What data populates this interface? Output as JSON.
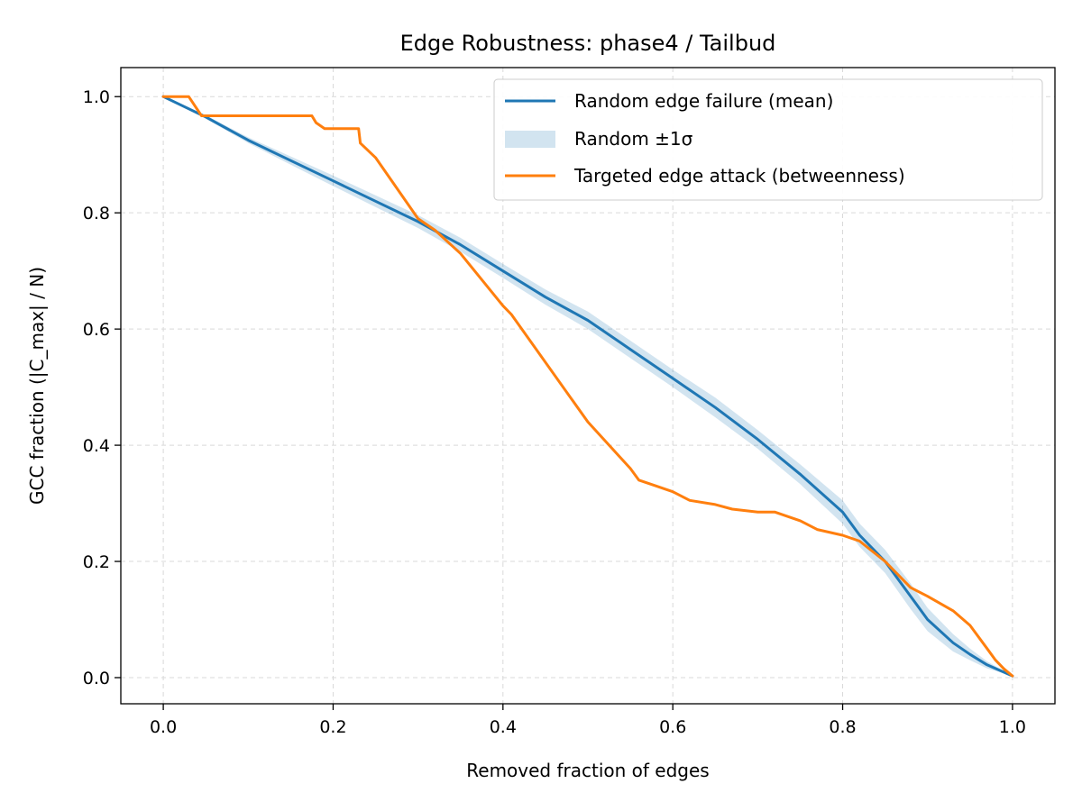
{
  "chart_data": {
    "type": "line",
    "title": "Edge Robustness: phase4 / Tailbud",
    "xlabel": "Removed fraction of edges",
    "ylabel": "GCC fraction (|C_max| / N)",
    "xlim": [
      -0.05,
      1.05
    ],
    "ylim": [
      -0.045,
      1.05
    ],
    "xticks": [
      0.0,
      0.2,
      0.4,
      0.6,
      0.8,
      1.0
    ],
    "yticks": [
      0.0,
      0.2,
      0.4,
      0.6,
      0.8,
      1.0
    ],
    "xtick_labels": [
      "0.0",
      "0.2",
      "0.4",
      "0.6",
      "0.8",
      "1.0"
    ],
    "ytick_labels": [
      "0.0",
      "0.2",
      "0.4",
      "0.6",
      "0.8",
      "1.0"
    ],
    "grid": true,
    "legend_position": "top-right",
    "colors": {
      "random": "#1f77b4",
      "band": "#1f77b4",
      "targeted": "#ff7f0e"
    },
    "series": [
      {
        "name": "Random edge failure (mean)",
        "kind": "line",
        "x": [
          0.0,
          0.05,
          0.1,
          0.15,
          0.2,
          0.25,
          0.3,
          0.35,
          0.4,
          0.45,
          0.5,
          0.55,
          0.6,
          0.65,
          0.7,
          0.75,
          0.8,
          0.82,
          0.85,
          0.88,
          0.9,
          0.93,
          0.95,
          0.97,
          1.0
        ],
        "y": [
          1.0,
          0.965,
          0.925,
          0.89,
          0.855,
          0.82,
          0.785,
          0.745,
          0.7,
          0.655,
          0.615,
          0.565,
          0.515,
          0.465,
          0.41,
          0.35,
          0.285,
          0.245,
          0.2,
          0.14,
          0.1,
          0.06,
          0.04,
          0.022,
          0.003
        ]
      },
      {
        "name": "Random ±1σ",
        "kind": "band",
        "x": [
          0.0,
          0.05,
          0.1,
          0.15,
          0.2,
          0.25,
          0.3,
          0.35,
          0.4,
          0.45,
          0.5,
          0.55,
          0.6,
          0.65,
          0.7,
          0.75,
          0.8,
          0.82,
          0.85,
          0.88,
          0.9,
          0.93,
          0.95,
          0.97,
          1.0
        ],
        "lower": [
          1.0,
          0.962,
          0.92,
          0.883,
          0.846,
          0.81,
          0.774,
          0.733,
          0.688,
          0.642,
          0.6,
          0.55,
          0.5,
          0.448,
          0.394,
          0.333,
          0.265,
          0.225,
          0.18,
          0.118,
          0.08,
          0.045,
          0.03,
          0.016,
          0.003
        ],
        "upper": [
          1.0,
          0.968,
          0.93,
          0.897,
          0.864,
          0.83,
          0.796,
          0.757,
          0.712,
          0.668,
          0.63,
          0.58,
          0.53,
          0.482,
          0.426,
          0.367,
          0.305,
          0.265,
          0.22,
          0.162,
          0.12,
          0.075,
          0.05,
          0.028,
          0.003
        ]
      },
      {
        "name": "Targeted edge attack (betweenness)",
        "kind": "line",
        "x": [
          0.0,
          0.03,
          0.045,
          0.175,
          0.18,
          0.19,
          0.2,
          0.23,
          0.232,
          0.25,
          0.3,
          0.32,
          0.35,
          0.4,
          0.41,
          0.5,
          0.55,
          0.56,
          0.58,
          0.6,
          0.62,
          0.65,
          0.67,
          0.7,
          0.72,
          0.75,
          0.77,
          0.8,
          0.82,
          0.85,
          0.88,
          0.9,
          0.93,
          0.95,
          0.97,
          0.98,
          0.99,
          1.0
        ],
        "y": [
          1.0,
          1.0,
          0.967,
          0.967,
          0.955,
          0.945,
          0.945,
          0.945,
          0.92,
          0.895,
          0.79,
          0.77,
          0.73,
          0.64,
          0.625,
          0.44,
          0.36,
          0.34,
          0.33,
          0.32,
          0.305,
          0.298,
          0.29,
          0.285,
          0.285,
          0.27,
          0.255,
          0.245,
          0.235,
          0.2,
          0.155,
          0.14,
          0.115,
          0.09,
          0.05,
          0.03,
          0.015,
          0.003
        ]
      }
    ]
  }
}
